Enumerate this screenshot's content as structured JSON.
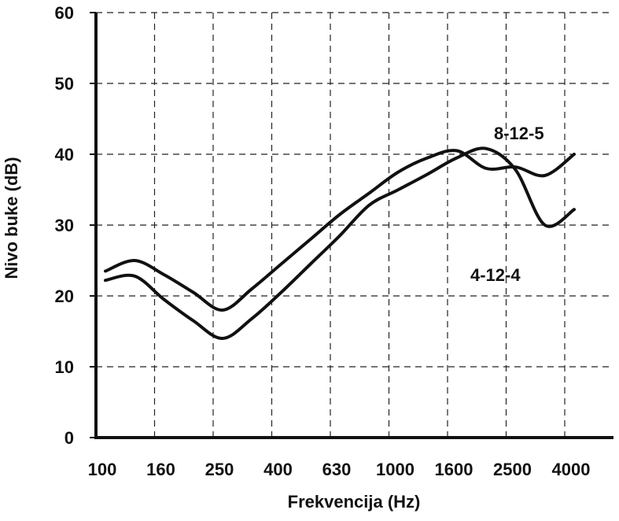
{
  "chart_data": {
    "type": "line",
    "xlabel": "Frekvencija (Hz)",
    "ylabel": "Nivo buke (dB)",
    "x_tick_labels": [
      "100",
      "160",
      "250",
      "400",
      "630",
      "1000",
      "1600",
      "2500",
      "4000"
    ],
    "y_ticks": [
      0,
      10,
      20,
      30,
      40,
      50,
      60
    ],
    "ylim": [
      0,
      60
    ],
    "grid": true,
    "x_scale": "log (one-third octave bands)",
    "series": [
      {
        "name": "8-12-5",
        "x": [
          "100",
          "125",
          "160",
          "200",
          "250",
          "315",
          "400",
          "500",
          "630",
          "800",
          "1000",
          "1250",
          "1600",
          "2000",
          "2500",
          "3150",
          "4000"
        ],
        "values": [
          23.5,
          25,
          23,
          20.5,
          18,
          21,
          24.5,
          28,
          31.5,
          34.5,
          37.5,
          39.5,
          40.5,
          38,
          38.2,
          37,
          40
        ]
      },
      {
        "name": "4-12-4",
        "x": [
          "100",
          "125",
          "160",
          "200",
          "250",
          "315",
          "400",
          "500",
          "630",
          "800",
          "1000",
          "1250",
          "1600",
          "2000",
          "2500",
          "3150",
          "4000"
        ],
        "values": [
          22.2,
          22.8,
          19.5,
          16.5,
          14,
          16.8,
          20.5,
          24.5,
          28.5,
          32.8,
          35,
          37.2,
          39.5,
          40.8,
          37.8,
          30,
          32.2
        ]
      }
    ]
  }
}
